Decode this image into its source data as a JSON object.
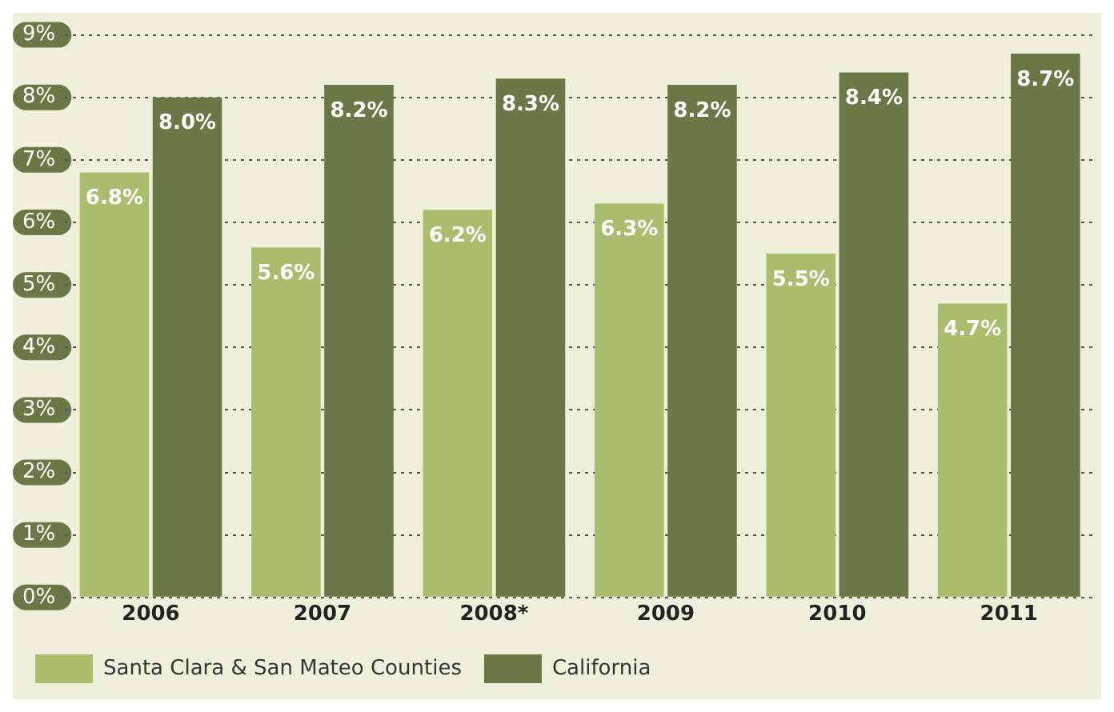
{
  "chart_data": {
    "type": "bar",
    "categories": [
      "2006",
      "2007",
      "2008*",
      "2009",
      "2010",
      "2011"
    ],
    "series": [
      {
        "name": "Santa Clara & San Mateo Counties",
        "color": "#a9bd6d",
        "values": [
          6.8,
          5.6,
          6.2,
          6.3,
          5.5,
          4.7
        ],
        "value_labels": [
          "6.8%",
          "5.6%",
          "6.2%",
          "6.3%",
          "5.5%",
          "4.7%"
        ]
      },
      {
        "name": "California",
        "color": "#6b7845",
        "values": [
          8.0,
          8.2,
          8.3,
          8.2,
          8.4,
          8.7
        ],
        "value_labels": [
          "8.0%",
          "8.2%",
          "8.3%",
          "8.2%",
          "8.4%",
          "8.7%"
        ]
      }
    ],
    "ylim": [
      0,
      9
    ],
    "yticks": [
      {
        "value": 0,
        "label": "0%"
      },
      {
        "value": 1,
        "label": "1%"
      },
      {
        "value": 2,
        "label": "2%"
      },
      {
        "value": 3,
        "label": "3%"
      },
      {
        "value": 4,
        "label": "4%"
      },
      {
        "value": 5,
        "label": "5%"
      },
      {
        "value": 6,
        "label": "6%"
      },
      {
        "value": 7,
        "label": "7%"
      },
      {
        "value": 8,
        "label": "8%"
      },
      {
        "value": 9,
        "label": "9%"
      }
    ],
    "grid": "y",
    "legend": "bottom"
  }
}
